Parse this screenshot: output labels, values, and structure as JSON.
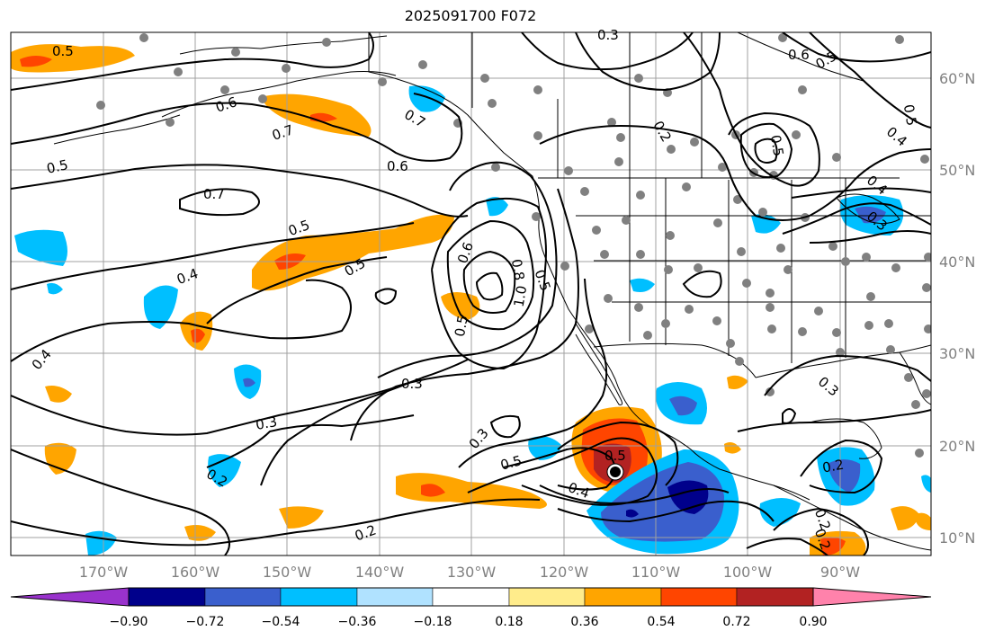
{
  "title": "2025091700 F072",
  "longitude_labels": [
    "170°W",
    "160°W",
    "150°W",
    "140°W",
    "130°W",
    "120°W",
    "110°W",
    "100°W",
    "90°W"
  ],
  "latitude_labels": [
    "60°N",
    "50°N",
    "40°N",
    "30°N",
    "20°N",
    "10°N"
  ],
  "colorbar": {
    "tick_labels": [
      "−0.90",
      "−0.72",
      "−0.54",
      "−0.36",
      "−0.18",
      "0.18",
      "0.36",
      "0.54",
      "0.72",
      "0.90"
    ],
    "colors": [
      "#9932cc",
      "#00008b",
      "#3a5fcd",
      "#00bfff",
      "#b0e2ff",
      "#ffffff",
      "#ffec8b",
      "#ffa500",
      "#ff4500",
      "#b22222",
      "#ff82ab"
    ]
  },
  "contour_labels": [
    "0.5",
    "0.6",
    "0.7",
    "0.5",
    "0.7",
    "0.6",
    "0.5",
    "0.7",
    "0.5",
    "0.4",
    "0.4",
    "0.5",
    "0.6",
    "0.8",
    "1.0",
    "0.5",
    "0.3",
    "0.3",
    "0.3",
    "0.5",
    "0.5",
    "0.4",
    "0.2",
    "0.2",
    "0.3",
    "0.2",
    "0.5",
    "0.6",
    "0.5",
    "0.4",
    "0.5",
    "0.3",
    "0.2",
    "0.4",
    "0.3",
    "0.2",
    "0.2"
  ],
  "colors": {
    "contour": "#000000",
    "grid": "#a0a0a0",
    "station": "#808080",
    "coast": "#000000"
  }
}
